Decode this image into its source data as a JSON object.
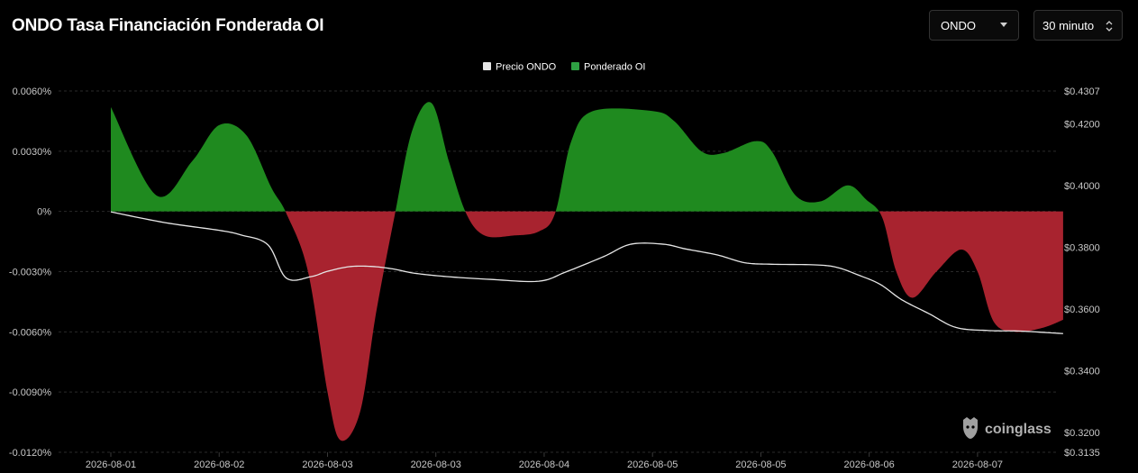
{
  "header": {
    "title": "ONDO Tasa Financiación Fonderada OI",
    "symbol_select": "ONDO",
    "interval_select": "30 minuto"
  },
  "watermark": "coinglass",
  "chart_data": {
    "type": "area",
    "title": "ONDO Tasa Financiación Fonderada OI",
    "legend": {
      "position": "top-center",
      "items": [
        {
          "label": "Precio ONDO",
          "color": "#e6e6e6"
        },
        {
          "label": "Ponderado OI",
          "color": "#2ea043"
        }
      ]
    },
    "x_tick_labels": [
      "2026-08-01",
      "2026-08-02",
      "2026-08-03",
      "2026-08-03",
      "2026-08-04",
      "2026-08-05",
      "2026-08-05",
      "2026-08-06",
      "2026-08-07"
    ],
    "y_left": {
      "ticks": [
        0.006,
        0.003,
        0,
        -0.003,
        -0.006,
        -0.009,
        -0.012
      ],
      "tick_labels": [
        "0.0060%",
        "0.0030%",
        "0%",
        "-0.0030%",
        "-0.0060%",
        "-0.0090%",
        "-0.0120%"
      ],
      "range": [
        -0.012,
        0.006
      ],
      "unit": "%"
    },
    "y_right": {
      "ticks": [
        0.4307,
        0.42,
        0.4,
        0.38,
        0.36,
        0.34,
        0.32,
        0.3135
      ],
      "tick_labels": [
        "$0.4307",
        "$0.4200",
        "$0.4000",
        "$0.3800",
        "$0.3600",
        "$0.3400",
        "$0.3200",
        "$0.3135"
      ],
      "range": [
        0.3135,
        0.4307
      ]
    },
    "x_range": [
      0,
      8.4
    ],
    "grid": true,
    "series": [
      {
        "name": "Ponderado OI",
        "kind": "area",
        "axis": "left",
        "positive_color": "#1f8a1f",
        "negative_color": "#a8232f",
        "points": [
          [
            0.0,
            0.0052
          ],
          [
            0.42,
            0.0008
          ],
          [
            0.75,
            0.0025
          ],
          [
            1.0,
            0.0043
          ],
          [
            1.25,
            0.0038
          ],
          [
            1.48,
            0.0012
          ],
          [
            1.62,
            -0.0001
          ],
          [
            1.82,
            -0.003
          ],
          [
            2.0,
            -0.009
          ],
          [
            2.12,
            -0.0114
          ],
          [
            2.3,
            -0.01
          ],
          [
            2.45,
            -0.005
          ],
          [
            2.62,
            -0.0002
          ],
          [
            2.78,
            0.004
          ],
          [
            2.96,
            0.0054
          ],
          [
            3.12,
            0.0025
          ],
          [
            3.28,
            -0.0001
          ],
          [
            3.45,
            -0.0012
          ],
          [
            3.72,
            -0.0012
          ],
          [
            3.95,
            -0.001
          ],
          [
            4.1,
            -0.0001
          ],
          [
            4.25,
            0.0035
          ],
          [
            4.45,
            0.005
          ],
          [
            5.0,
            0.005
          ],
          [
            5.2,
            0.0045
          ],
          [
            5.45,
            0.003
          ],
          [
            5.65,
            0.0029
          ],
          [
            5.95,
            0.0035
          ],
          [
            6.1,
            0.003
          ],
          [
            6.32,
            0.0008
          ],
          [
            6.55,
            0.0005
          ],
          [
            6.8,
            0.0013
          ],
          [
            6.97,
            0.0006
          ],
          [
            7.12,
            -0.0003
          ],
          [
            7.25,
            -0.003
          ],
          [
            7.4,
            -0.0043
          ],
          [
            7.62,
            -0.003
          ],
          [
            7.85,
            -0.0019
          ],
          [
            8.0,
            -0.003
          ],
          [
            8.15,
            -0.0055
          ],
          [
            8.35,
            -0.006
          ],
          [
            8.6,
            -0.0058
          ],
          [
            8.79,
            -0.0054
          ]
        ]
      },
      {
        "name": "Precio ONDO",
        "kind": "line",
        "axis": "right",
        "color": "#e6e6e6",
        "points": [
          [
            0.0,
            0.3915
          ],
          [
            0.5,
            0.388
          ],
          [
            1.0,
            0.3855
          ],
          [
            1.2,
            0.384
          ],
          [
            1.45,
            0.3808
          ],
          [
            1.62,
            0.37
          ],
          [
            1.85,
            0.3705
          ],
          [
            2.0,
            0.3722
          ],
          [
            2.2,
            0.3737
          ],
          [
            2.4,
            0.3738
          ],
          [
            2.6,
            0.373
          ],
          [
            2.8,
            0.3716
          ],
          [
            3.1,
            0.3705
          ],
          [
            3.5,
            0.3696
          ],
          [
            3.95,
            0.369
          ],
          [
            4.2,
            0.372
          ],
          [
            4.55,
            0.377
          ],
          [
            4.8,
            0.381
          ],
          [
            5.1,
            0.381
          ],
          [
            5.3,
            0.3795
          ],
          [
            5.6,
            0.3775
          ],
          [
            5.85,
            0.375
          ],
          [
            6.1,
            0.3745
          ],
          [
            6.5,
            0.3743
          ],
          [
            6.7,
            0.3735
          ],
          [
            6.9,
            0.371
          ],
          [
            7.1,
            0.368
          ],
          [
            7.3,
            0.363
          ],
          [
            7.55,
            0.3585
          ],
          [
            7.8,
            0.354
          ],
          [
            8.1,
            0.353
          ],
          [
            8.4,
            0.3528
          ],
          [
            8.79,
            0.352
          ]
        ]
      }
    ]
  }
}
